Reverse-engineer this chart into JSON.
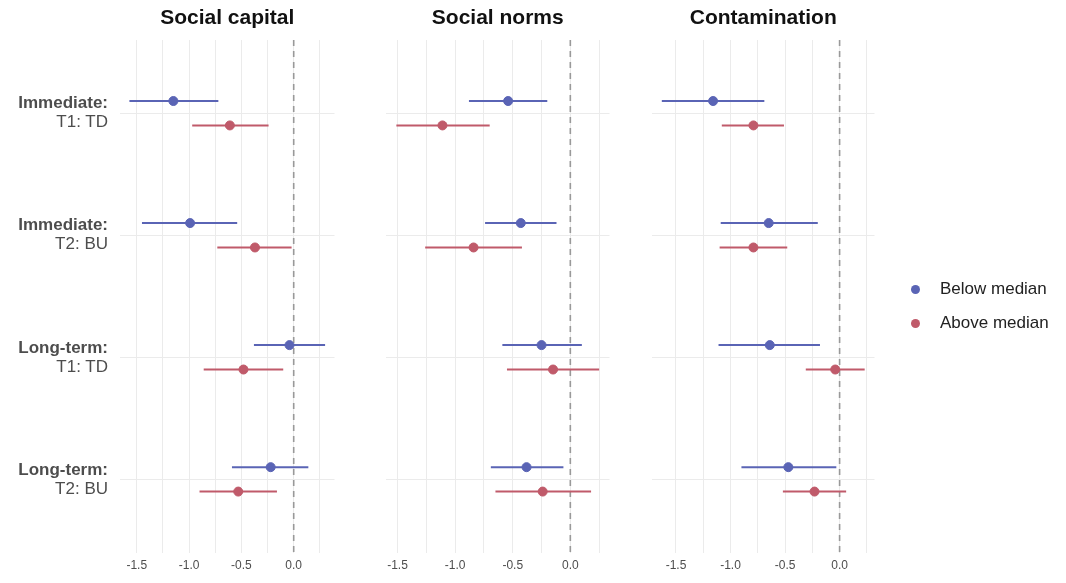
{
  "chart_data": [
    {
      "type": "scatter",
      "orientation": "horizontal",
      "title": "Social capital",
      "categories": [
        "Immediate:\nT1: TD",
        "Immediate:\nT2: BU",
        "Long-term:\nT1: TD",
        "Long-term:\nT2: BU"
      ],
      "series": [
        {
          "color": "#5a64b5",
          "values": [
            -1.15,
            -0.99,
            -0.04,
            -0.22
          ],
          "errors": [
            [
              -1.57,
              -0.72
            ],
            [
              -1.45,
              -0.54
            ],
            [
              -0.38,
              0.3
            ],
            [
              -0.59,
              0.14
            ]
          ]
        },
        {
          "color": "#c05a6a",
          "values": [
            -0.61,
            -0.37,
            -0.48,
            -0.53
          ],
          "errors": [
            [
              -0.97,
              -0.24
            ],
            [
              -0.73,
              -0.02
            ],
            [
              -0.86,
              -0.1
            ],
            [
              -0.9,
              -0.16
            ]
          ]
        }
      ],
      "xlim": [
        -1.66,
        0.39
      ],
      "xticks": [
        {
          "value": -1.5,
          "label": "-1.5"
        },
        {
          "value": -1.25,
          "label": null
        },
        {
          "value": -1,
          "label": "-1.0"
        },
        {
          "value": -0.75,
          "label": null
        },
        {
          "value": -0.5,
          "label": "-0.5"
        },
        {
          "value": -0.25,
          "label": null
        },
        {
          "value": 0,
          "label": "0.0"
        },
        {
          "value": 0.25,
          "label": null
        }
      ],
      "grid": true,
      "marker": "circle",
      "ref_lines": [
        {
          "axis": "x",
          "value": 0,
          "color": "#999999",
          "line_style": "dashed"
        }
      ]
    },
    {
      "type": "scatter",
      "orientation": "horizontal",
      "title": "Social norms",
      "tick_labels": "x",
      "series": [
        {
          "color": "#5a64b5",
          "values": [
            -0.54,
            -0.43,
            -0.25,
            -0.38
          ],
          "errors": [
            [
              -0.88,
              -0.2
            ],
            [
              -0.74,
              -0.12
            ],
            [
              -0.59,
              0.1
            ],
            [
              -0.69,
              -0.06
            ]
          ]
        },
        {
          "color": "#c05a6a",
          "values": [
            -1.11,
            -0.84,
            -0.15,
            -0.24
          ],
          "errors": [
            [
              -1.51,
              -0.7
            ],
            [
              -1.26,
              -0.42
            ],
            [
              -0.55,
              0.25
            ],
            [
              -0.65,
              0.18
            ]
          ]
        }
      ],
      "xlim": [
        -1.6,
        0.34
      ],
      "xticks": [
        {
          "value": -1.5,
          "label": "-1.5"
        },
        {
          "value": -1.25,
          "label": null
        },
        {
          "value": -1,
          "label": "-1.0"
        },
        {
          "value": -0.75,
          "label": null
        },
        {
          "value": -0.5,
          "label": "-0.5"
        },
        {
          "value": -0.25,
          "label": null
        },
        {
          "value": 0,
          "label": "0.0"
        },
        {
          "value": 0.25,
          "label": null
        }
      ],
      "grid": true,
      "marker": "circle",
      "ref_lines": [
        {
          "axis": "x",
          "value": 0,
          "color": "#999999",
          "line_style": "dashed"
        }
      ]
    },
    {
      "type": "scatter",
      "orientation": "horizontal",
      "title": "Contamination",
      "tick_labels": "x",
      "legend": "right",
      "series": [
        {
          "name": "Below median",
          "color": "#5a64b5",
          "values": [
            -1.16,
            -0.65,
            -0.64,
            -0.47
          ],
          "errors": [
            [
              -1.63,
              -0.69
            ],
            [
              -1.09,
              -0.2
            ],
            [
              -1.11,
              -0.18
            ],
            [
              -0.9,
              -0.03
            ]
          ]
        },
        {
          "name": "Above median",
          "color": "#c05a6a",
          "values": [
            -0.79,
            -0.79,
            -0.04,
            -0.23
          ],
          "errors": [
            [
              -1.08,
              -0.51
            ],
            [
              -1.1,
              -0.48
            ],
            [
              -0.31,
              0.23
            ],
            [
              -0.52,
              0.06
            ]
          ]
        }
      ],
      "xlim": [
        -1.72,
        0.32
      ],
      "xticks": [
        {
          "value": -1.5,
          "label": "-1.5"
        },
        {
          "value": -1.25,
          "label": null
        },
        {
          "value": -1,
          "label": "-1.0"
        },
        {
          "value": -0.75,
          "label": null
        },
        {
          "value": -0.5,
          "label": "-0.5"
        },
        {
          "value": -0.25,
          "label": null
        },
        {
          "value": 0,
          "label": "0.0"
        },
        {
          "value": 0.25,
          "label": null
        }
      ],
      "grid": true,
      "marker": "circle",
      "ref_lines": [
        {
          "axis": "x",
          "value": 0,
          "color": "#999999",
          "line_style": "dashed"
        }
      ]
    }
  ]
}
